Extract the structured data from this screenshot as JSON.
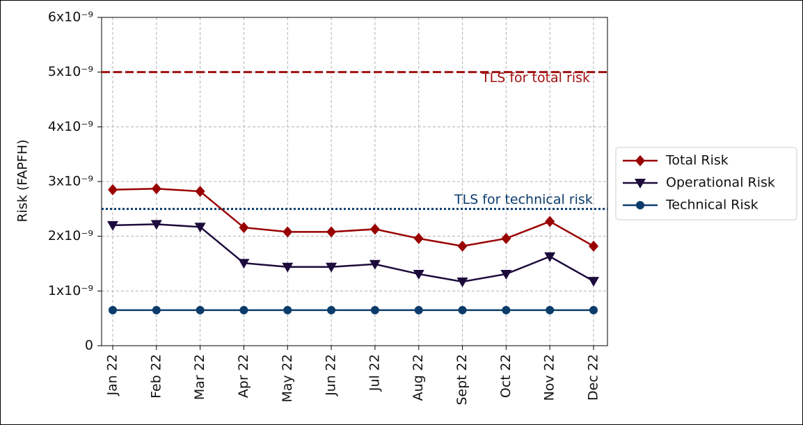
{
  "chart_data": {
    "type": "line",
    "ylabel": "Risk (FAPFH)",
    "categories": [
      "Jan 22",
      "Feb 22",
      "Mar 22",
      "Apr 22",
      "May 22",
      "Jun 22",
      "Jul 22",
      "Aug 22",
      "Sept 22",
      "Oct 22",
      "Nov 22",
      "Dec 22"
    ],
    "series": [
      {
        "name": "Total Risk",
        "color": "#990000",
        "marker": "diamond",
        "values": [
          2.85e-09,
          2.87e-09,
          2.82e-09,
          2.16e-09,
          2.08e-09,
          2.08e-09,
          2.13e-09,
          1.96e-09,
          1.82e-09,
          1.96e-09,
          2.27e-09,
          1.82e-09
        ]
      },
      {
        "name": "Operational Risk",
        "color": "#1c0b3b",
        "marker": "triangle_down",
        "values": [
          2.2e-09,
          2.22e-09,
          2.17e-09,
          1.51e-09,
          1.44e-09,
          1.44e-09,
          1.49e-09,
          1.31e-09,
          1.17e-09,
          1.31e-09,
          1.63e-09,
          1.18e-09
        ]
      },
      {
        "name": "Technical Risk",
        "color": "#0b3c6b",
        "marker": "circle",
        "values": [
          6.5e-10,
          6.5e-10,
          6.5e-10,
          6.5e-10,
          6.5e-10,
          6.5e-10,
          6.5e-10,
          6.5e-10,
          6.5e-10,
          6.5e-10,
          6.5e-10,
          6.5e-10
        ]
      }
    ],
    "hlines": [
      {
        "value": 5e-09,
        "label": "TLS for total risk",
        "color": "#a01010",
        "style": "dashed"
      },
      {
        "value": 2.5e-09,
        "label": "TLS for technical risk",
        "color": "#0b3c6b",
        "style": "dotted"
      }
    ],
    "ylim": [
      0,
      6e-09
    ],
    "yticks": [
      0,
      {
        "value": 1e-09,
        "label": "1x10⁻⁹"
      },
      {
        "value": 2e-09,
        "label": "2x10⁻⁹"
      },
      {
        "value": 3e-09,
        "label": "3x10⁻⁹"
      },
      {
        "value": 4e-09,
        "label": "4x10⁻⁹"
      },
      {
        "value": 5e-09,
        "label": "5x10⁻⁹"
      },
      {
        "value": 6e-09,
        "label": "6x10⁻⁹"
      }
    ],
    "grid": true,
    "legend": "outside right"
  }
}
